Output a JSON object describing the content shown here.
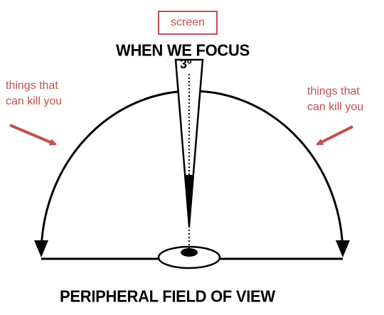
{
  "screen_label": "screen",
  "top_heading": "WHEN WE FOCUS",
  "bottom_heading": "PERIPHERAL FIELD OF VIEW",
  "focus_angle": "3º",
  "left_note": [
    "things that",
    "can kill you"
  ],
  "right_note": [
    "things that",
    "can kill you"
  ],
  "colors": {
    "annotation": "#c0504d",
    "diagram": "#000000"
  }
}
